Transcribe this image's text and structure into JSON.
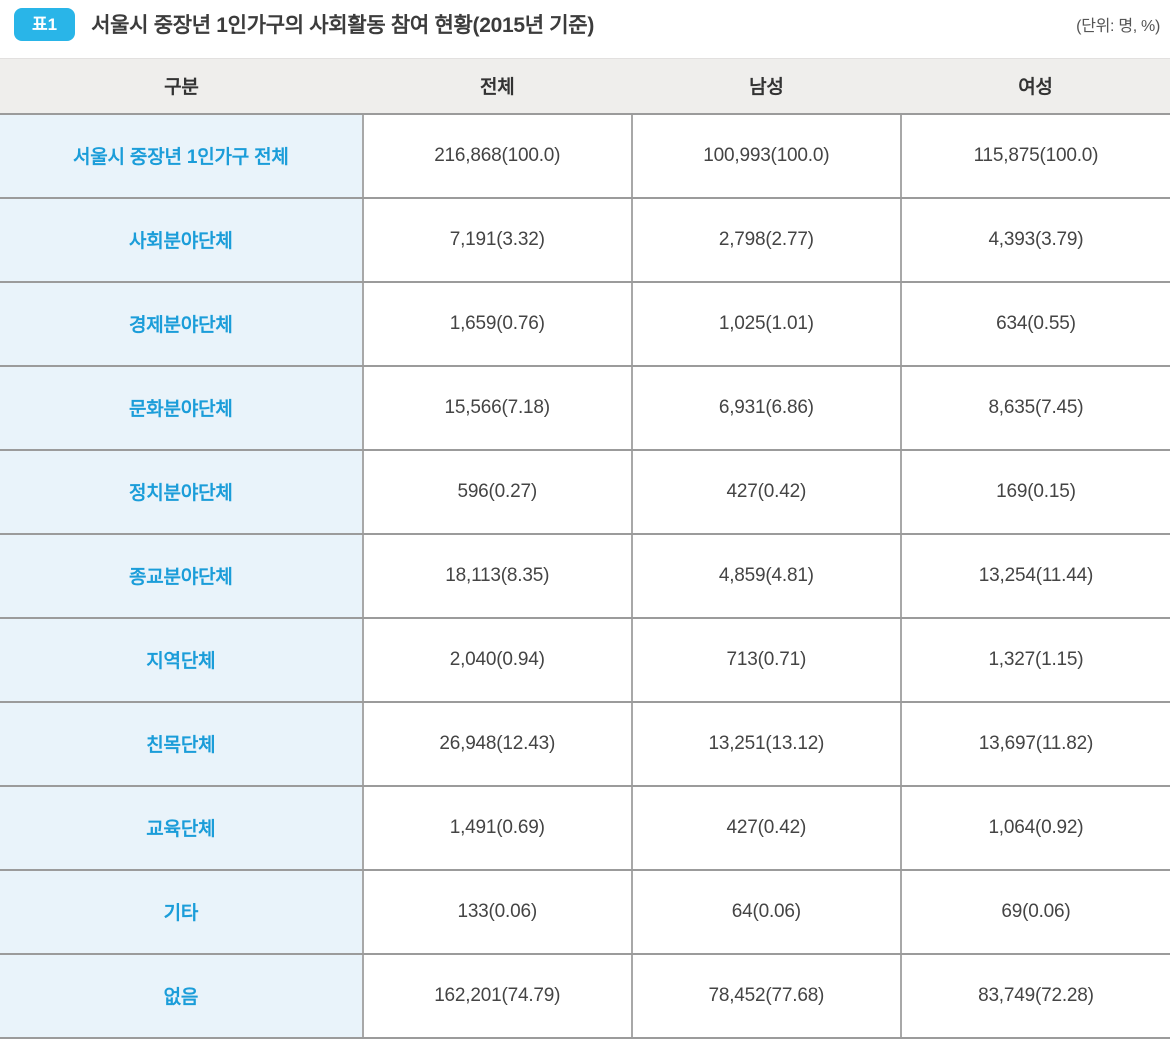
{
  "caption": {
    "badge": "표1",
    "title": "서울시 중장년 1인가구의 사회활동 참여 현황(2015년 기준)",
    "unit": "(단위: 명, %)"
  },
  "colors": {
    "badge_bg": "#29b5e8",
    "label_text": "#1b9dd9",
    "label_cell_bg": "#e9f3fa",
    "header_bg": "#efeeec",
    "grid_line": "#9b9b9b"
  },
  "table": {
    "columns": [
      "구분",
      "전체",
      "남성",
      "여성"
    ],
    "rows": [
      {
        "label": "서울시 중장년 1인가구 전체",
        "values": [
          "216,868(100.0)",
          "100,993(100.0)",
          "115,875(100.0)"
        ]
      },
      {
        "label": "사회분야단체",
        "values": [
          "7,191(3.32)",
          "2,798(2.77)",
          "4,393(3.79)"
        ]
      },
      {
        "label": "경제분야단체",
        "values": [
          "1,659(0.76)",
          "1,025(1.01)",
          "634(0.55)"
        ]
      },
      {
        "label": "문화분야단체",
        "values": [
          "15,566(7.18)",
          "6,931(6.86)",
          "8,635(7.45)"
        ]
      },
      {
        "label": "정치분야단체",
        "values": [
          "596(0.27)",
          "427(0.42)",
          "169(0.15)"
        ]
      },
      {
        "label": "종교분야단체",
        "values": [
          "18,113(8.35)",
          "4,859(4.81)",
          "13,254(11.44)"
        ]
      },
      {
        "label": "지역단체",
        "values": [
          "2,040(0.94)",
          "713(0.71)",
          "1,327(1.15)"
        ]
      },
      {
        "label": "친목단체",
        "values": [
          "26,948(12.43)",
          "13,251(13.12)",
          "13,697(11.82)"
        ]
      },
      {
        "label": "교육단체",
        "values": [
          "1,491(0.69)",
          "427(0.42)",
          "1,064(0.92)"
        ]
      },
      {
        "label": "기타",
        "values": [
          "133(0.06)",
          "64(0.06)",
          "69(0.06)"
        ]
      },
      {
        "label": "없음",
        "values": [
          "162,201(74.79)",
          "78,452(77.68)",
          "83,749(72.28)"
        ]
      }
    ]
  }
}
